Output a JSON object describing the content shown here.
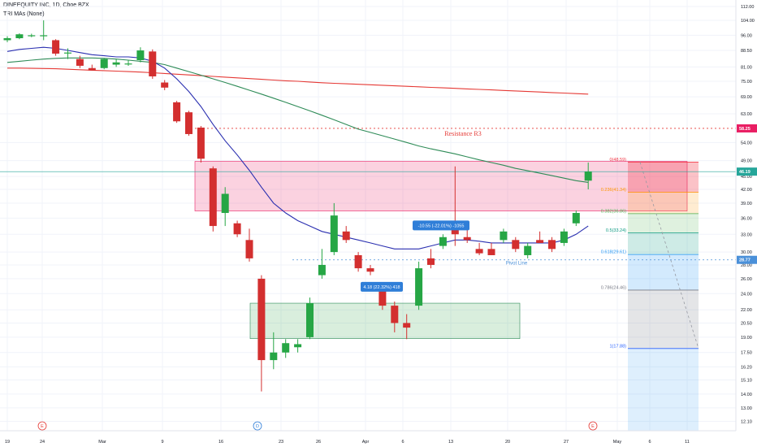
{
  "header": {
    "title": "DINEEQUITY INC, 1D, Cboe BZX",
    "indicator": "TRI MAs (None)"
  },
  "colors": {
    "up": "#26a645",
    "down": "#d32f2f",
    "ma_fast": "#2a2fb0",
    "ma_mid": "#2e8b57",
    "ma_slow": "#e53935",
    "resistance": "#e53935",
    "pivot": "#4a90d9",
    "accent_blue": "#2f7ed8"
  },
  "y_axis": {
    "ticks": [
      "112.00",
      "104.00",
      "96.00",
      "88.50",
      "81.00",
      "75.00",
      "69.00",
      "63.00",
      "58.25",
      "54.00",
      "49.00",
      "46.19",
      "45.00",
      "42.00",
      "39.00",
      "36.00",
      "33.00",
      "30.00",
      "28.77",
      "28.00",
      "26.00",
      "24.00",
      "22.00",
      "20.50",
      "19.00",
      "17.50",
      "16.20",
      "15.10",
      "14.00",
      "13.00",
      "12.10"
    ],
    "price_tag_current": "46.19",
    "price_tag_resistance": "58.25",
    "price_tag_pivot": "28.77"
  },
  "x_axis": {
    "labels": [
      "19",
      "24",
      "Mar",
      "9",
      "16",
      "23",
      "26",
      "Apr",
      "6",
      "13",
      "20",
      "27",
      "May",
      "6",
      "11"
    ]
  },
  "annotations": {
    "resistance": "Resistance R3",
    "pivot": "Pivot Line",
    "measure_up": "4.18 (22.32%) 418",
    "measure_down": "-10.55 (-22.01%) -1055"
  },
  "fib_levels": [
    {
      "label": "0(48.59)",
      "price": 48.59
    },
    {
      "label": "0.236(41.34)",
      "price": 41.34
    },
    {
      "label": "0.382(36.86)",
      "price": 36.86
    },
    {
      "label": "0.5(33.24)",
      "price": 33.24
    },
    {
      "label": "0.618(29.61)",
      "price": 29.61
    },
    {
      "label": "0.786(24.46)",
      "price": 24.46
    },
    {
      "label": "1(17.88)",
      "price": 17.88
    }
  ],
  "events": [
    {
      "label": "E"
    },
    {
      "label": "D"
    },
    {
      "label": "E"
    }
  ],
  "chart_data": {
    "type": "candlestick",
    "symbol": "DINEEQUITY INC",
    "interval": "1D",
    "exchange": "Cboe BZX",
    "y_scale": "log",
    "candles": [
      {
        "o": 93.5,
        "h": 95.5,
        "l": 92.5,
        "c": 94.5
      },
      {
        "o": 94.5,
        "h": 97.0,
        "l": 94.0,
        "c": 96.5
      },
      {
        "o": 96.0,
        "h": 96.8,
        "l": 95.0,
        "c": 96.0
      },
      {
        "o": 96.0,
        "h": 104.0,
        "l": 93.5,
        "c": 96.0
      },
      {
        "o": 93.5,
        "h": 94.0,
        "l": 86.0,
        "c": 87.0
      },
      {
        "o": 87.5,
        "h": 89.5,
        "l": 84.5,
        "c": 87.5
      },
      {
        "o": 84.5,
        "h": 86.0,
        "l": 80.5,
        "c": 81.5
      },
      {
        "o": 80.5,
        "h": 82.0,
        "l": 79.5,
        "c": 79.5
      },
      {
        "o": 80.5,
        "h": 85.0,
        "l": 80.0,
        "c": 84.5
      },
      {
        "o": 82.0,
        "h": 84.5,
        "l": 81.0,
        "c": 83.0
      },
      {
        "o": 82.5,
        "h": 84.0,
        "l": 81.5,
        "c": 82.5
      },
      {
        "o": 84.0,
        "h": 90.0,
        "l": 83.0,
        "c": 88.5
      },
      {
        "o": 88.0,
        "h": 89.0,
        "l": 76.0,
        "c": 77.0
      },
      {
        "o": 74.5,
        "h": 75.5,
        "l": 71.5,
        "c": 72.5
      },
      {
        "o": 67.0,
        "h": 67.5,
        "l": 60.0,
        "c": 60.5
      },
      {
        "o": 63.5,
        "h": 64.0,
        "l": 56.0,
        "c": 56.5
      },
      {
        "o": 58.5,
        "h": 59.0,
        "l": 48.5,
        "c": 49.5
      },
      {
        "o": 47.0,
        "h": 47.5,
        "l": 33.5,
        "c": 34.5
      },
      {
        "o": 37.0,
        "h": 42.5,
        "l": 34.5,
        "c": 41.0
      },
      {
        "o": 35.0,
        "h": 35.5,
        "l": 32.5,
        "c": 33.0
      },
      {
        "o": 32.0,
        "h": 34.0,
        "l": 28.5,
        "c": 29.0
      },
      {
        "o": 26.0,
        "h": 26.5,
        "l": 14.2,
        "c": 16.8
      },
      {
        "o": 16.8,
        "h": 19.5,
        "l": 16.0,
        "c": 17.5
      },
      {
        "o": 17.5,
        "h": 18.8,
        "l": 17.0,
        "c": 18.4
      },
      {
        "o": 18.0,
        "h": 18.8,
        "l": 17.5,
        "c": 18.3
      },
      {
        "o": 19.0,
        "h": 23.5,
        "l": 18.8,
        "c": 22.8
      },
      {
        "o": 26.5,
        "h": 30.5,
        "l": 26.0,
        "c": 28.0
      },
      {
        "o": 30.0,
        "h": 39.0,
        "l": 29.5,
        "c": 36.5
      },
      {
        "o": 33.5,
        "h": 34.5,
        "l": 31.5,
        "c": 32.0
      },
      {
        "o": 29.5,
        "h": 30.0,
        "l": 27.0,
        "c": 27.5
      },
      {
        "o": 27.5,
        "h": 28.0,
        "l": 26.5,
        "c": 27.0
      },
      {
        "o": 25.0,
        "h": 25.5,
        "l": 22.0,
        "c": 22.5
      },
      {
        "o": 22.5,
        "h": 23.0,
        "l": 19.5,
        "c": 20.5
      },
      {
        "o": 20.5,
        "h": 21.5,
        "l": 18.8,
        "c": 20.0
      },
      {
        "o": 22.5,
        "h": 28.5,
        "l": 22.0,
        "c": 27.5
      },
      {
        "o": 29.0,
        "h": 30.5,
        "l": 27.5,
        "c": 28.0
      },
      {
        "o": 31.0,
        "h": 33.0,
        "l": 30.5,
        "c": 32.5
      },
      {
        "o": 34.5,
        "h": 47.5,
        "l": 31.0,
        "c": 33.0
      },
      {
        "o": 32.5,
        "h": 34.0,
        "l": 31.5,
        "c": 32.0
      },
      {
        "o": 30.5,
        "h": 31.5,
        "l": 29.5,
        "c": 29.8
      },
      {
        "o": 30.5,
        "h": 31.5,
        "l": 29.5,
        "c": 29.5
      },
      {
        "o": 32.0,
        "h": 34.0,
        "l": 31.5,
        "c": 33.5
      },
      {
        "o": 32.0,
        "h": 32.5,
        "l": 30.0,
        "c": 30.5
      },
      {
        "o": 29.5,
        "h": 31.5,
        "l": 29.0,
        "c": 31.0
      },
      {
        "o": 32.0,
        "h": 33.5,
        "l": 31.5,
        "c": 31.5
      },
      {
        "o": 32.0,
        "h": 32.5,
        "l": 30.0,
        "c": 30.5
      },
      {
        "o": 31.5,
        "h": 34.0,
        "l": 31.0,
        "c": 33.5
      },
      {
        "o": 35.0,
        "h": 37.5,
        "l": 34.5,
        "c": 37.0
      },
      {
        "o": 44.0,
        "h": 48.5,
        "l": 42.0,
        "c": 46.19
      }
    ],
    "ma_fast": [
      88.0,
      89.0,
      89.5,
      90.0,
      89.5,
      88.5,
      87.5,
      86.5,
      86.0,
      85.5,
      85.5,
      85.0,
      83.5,
      80.5,
      76.0,
      71.0,
      65.5,
      59.5,
      54.5,
      50.5,
      46.5,
      42.5,
      39.0,
      37.0,
      35.5,
      34.5,
      33.5,
      33.0,
      32.5,
      32.0,
      31.5,
      31.0,
      30.5,
      30.5,
      30.5,
      31.0,
      31.5,
      32.0,
      32.0,
      31.8,
      31.5,
      31.5,
      31.5,
      31.5,
      31.5,
      31.5,
      32.0,
      33.0,
      34.5
    ],
    "ma_mid": [
      83.0,
      83.5,
      84.0,
      84.5,
      84.8,
      85.0,
      85.0,
      85.0,
      84.8,
      84.5,
      84.0,
      83.5,
      83.0,
      82.0,
      80.5,
      79.0,
      77.5,
      76.0,
      74.5,
      73.0,
      71.5,
      70.0,
      68.5,
      67.0,
      65.5,
      64.0,
      62.5,
      61.0,
      59.5,
      58.0,
      57.0,
      56.0,
      55.0,
      54.0,
      53.0,
      52.2,
      51.5,
      50.8,
      50.0,
      49.2,
      48.5,
      47.8,
      47.0,
      46.4,
      45.8,
      45.2,
      44.6,
      44.0,
      43.6
    ],
    "ma_slow": [
      80.5,
      80.5,
      80.4,
      80.3,
      80.2,
      80.0,
      79.8,
      79.6,
      79.4,
      79.2,
      79.0,
      78.8,
      78.5,
      78.2,
      77.9,
      77.6,
      77.3,
      77.0,
      76.7,
      76.4,
      76.1,
      75.8,
      75.5,
      75.2,
      75.0,
      74.7,
      74.4,
      74.2,
      74.0,
      73.8,
      73.6,
      73.4,
      73.2,
      73.0,
      72.8,
      72.6,
      72.4,
      72.2,
      72.0,
      71.8,
      71.6,
      71.4,
      71.2,
      71.0,
      70.8,
      70.6,
      70.4,
      70.2,
      70.0
    ],
    "resistance_r3": 58.25,
    "pivot": 28.77,
    "current_price": 46.19
  }
}
